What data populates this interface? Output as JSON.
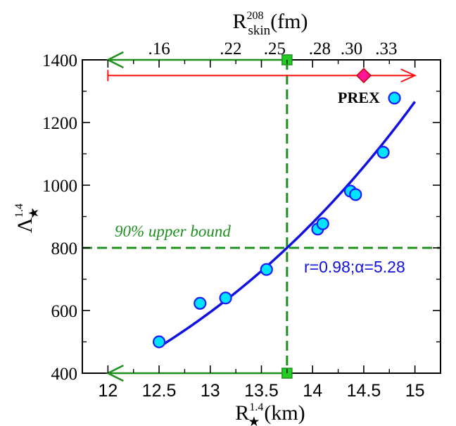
{
  "chart_data": {
    "type": "scatter",
    "title": "",
    "xlabel": {
      "base": "R",
      "sup": "1.4",
      "sub": "★",
      "unit": "(km)"
    },
    "ylabel": {
      "base": "Λ",
      "sup": "1.4",
      "sub": "★"
    },
    "top_axis_label": {
      "base": "R",
      "sup": "208",
      "sub": "skin",
      "unit": "(fm)"
    },
    "xlim": [
      11.75,
      15.25
    ],
    "ylim": [
      400,
      1400
    ],
    "x_ticks": [
      12,
      12.5,
      13,
      13.5,
      14,
      14.5,
      15
    ],
    "x_tick_labels": [
      "12",
      "12.5",
      "13",
      "13.5",
      "14",
      "14.5",
      "15"
    ],
    "y_ticks": [
      400,
      600,
      800,
      1000,
      1200,
      1400
    ],
    "y_tick_labels": [
      "400",
      "600",
      "800",
      "1000",
      "1200",
      "1400"
    ],
    "top_ticks": [
      {
        "label": ".16",
        "x": 12.5
      },
      {
        "label": ".22",
        "x": 13.2
      },
      {
        "label": ".25",
        "x": 13.63
      },
      {
        "label": ".28",
        "x": 14.07
      },
      {
        "label": ".30",
        "x": 14.38
      },
      {
        "label": ".33",
        "x": 14.72
      }
    ],
    "series": [
      {
        "type": "scatter",
        "color": "#00e5ff",
        "stroke": "#1a1aff",
        "points": [
          {
            "x": 12.5,
            "y": 500
          },
          {
            "x": 12.9,
            "y": 623
          },
          {
            "x": 13.15,
            "y": 640
          },
          {
            "x": 13.55,
            "y": 731
          },
          {
            "x": 14.05,
            "y": 860
          },
          {
            "x": 14.1,
            "y": 877
          },
          {
            "x": 14.37,
            "y": 981
          },
          {
            "x": 14.42,
            "y": 970
          },
          {
            "x": 14.69,
            "y": 1105
          },
          {
            "x": 14.8,
            "y": 1278
          }
        ]
      },
      {
        "type": "fit",
        "color": "#1010e0",
        "x_range": [
          12.5,
          15.0
        ],
        "exponent": 5.28,
        "ref_x": 13.75,
        "ref_y": 800
      }
    ],
    "fit_annotation": "r=0.98;α=5.28",
    "upper_bound_label": "90% upper bound",
    "upper_bound_value": 800,
    "bound_radius": 13.75,
    "prex": {
      "label": "PREX",
      "x": 14.5,
      "y": 1350,
      "x_from": 12,
      "x_to": 15.0,
      "color": "#ff1111",
      "marker_color": "#ff1493"
    },
    "green_arrows": [
      {
        "y": 1400,
        "x_from": 13.75,
        "x_to": 12.0
      },
      {
        "y": 400,
        "x_from": 13.75,
        "x_to": 12.0
      }
    ],
    "colors": {
      "green": "#1f8f1f",
      "green_marker": "#22cc22",
      "blue": "#1010e0",
      "points_fill": "#00e5ff"
    },
    "grid": false,
    "legend": "none"
  }
}
